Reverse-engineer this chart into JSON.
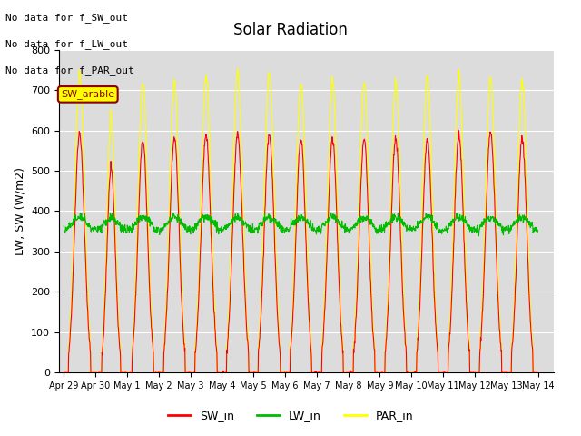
{
  "title": "Solar Radiation",
  "ylabel": "LW, SW (W/m2)",
  "ylim": [
    0,
    800
  ],
  "yticks": [
    0,
    100,
    200,
    300,
    400,
    500,
    600,
    700,
    800
  ],
  "x_tick_labels": [
    "Apr 29",
    "Apr 30",
    "May 1",
    "May 2",
    "May 3",
    "May 4",
    "May 5",
    "May 6",
    "May 7",
    "May 8",
    "May 9",
    "May 10",
    "May 11",
    "May 12",
    "May 13",
    "May 14"
  ],
  "x_tick_positions": [
    0,
    1,
    2,
    3,
    4,
    5,
    6,
    7,
    8,
    9,
    10,
    11,
    12,
    13,
    14,
    15
  ],
  "color_SW": "#ff0000",
  "color_LW": "#00bb00",
  "color_PAR": "#ffff00",
  "plot_bg_color": "#dcdcdc",
  "fig_bg_color": "#ffffff",
  "no_data_texts": [
    "No data for f_SW_out",
    "No data for f_LW_out",
    "No data for f_PAR_out"
  ],
  "annotation_text": "SW_arable",
  "legend_labels": [
    "SW_in",
    "LW_in",
    "PAR_in"
  ],
  "num_days": 15,
  "sw_peaks": [
    590,
    510,
    575,
    580,
    585,
    590,
    590,
    580,
    578,
    580,
    580,
    578,
    590,
    595,
    580
  ],
  "par_peaks": [
    740,
    635,
    720,
    722,
    730,
    745,
    745,
    720,
    725,
    720,
    723,
    735,
    740,
    730,
    720
  ],
  "day_lengths": [
    16.5,
    14,
    16,
    16,
    16.5,
    16.5,
    16.5,
    16,
    16,
    16,
    16,
    16,
    16,
    16.5,
    16
  ],
  "lw_base": 355,
  "lw_bump": 30
}
